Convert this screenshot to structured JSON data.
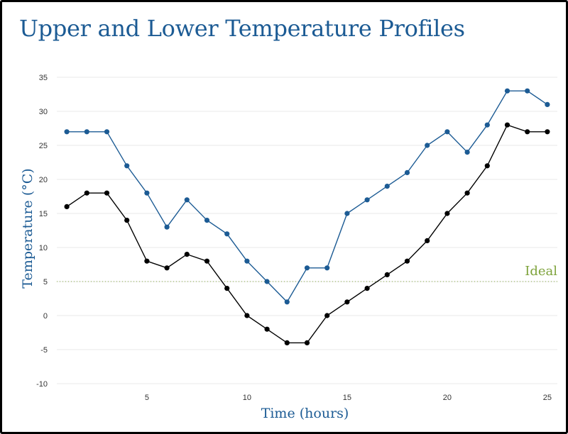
{
  "title": "Upper and Lower Temperature Profiles",
  "colors": {
    "title": "#1c5b94",
    "upper": "#1c5b94",
    "lower": "#000000",
    "ideal": "#7da23a",
    "grid": "#e9e9e9"
  },
  "chart_data": {
    "type": "line",
    "title": "Upper and Lower Temperature Profiles",
    "xlabel": "Time (hours)",
    "ylabel": "Temperature (°C)",
    "xlim": [
      0.5,
      25.5
    ],
    "ylim": [
      -10,
      35
    ],
    "x_ticks": [
      5,
      10,
      15,
      20,
      25
    ],
    "y_ticks": [
      -10,
      -5,
      0,
      5,
      10,
      15,
      20,
      25,
      30,
      35
    ],
    "grid": "horizontal",
    "x": [
      1,
      2,
      3,
      4,
      5,
      6,
      7,
      8,
      9,
      10,
      11,
      12,
      13,
      14,
      15,
      16,
      17,
      18,
      19,
      20,
      21,
      22,
      23,
      24,
      25
    ],
    "series": [
      {
        "key": "upper",
        "color": "#1c5b94",
        "values": [
          27,
          27,
          27,
          22,
          18,
          13,
          17,
          14,
          12,
          8,
          5,
          2,
          7,
          7,
          15,
          17,
          19,
          21,
          25,
          27,
          24,
          28,
          33,
          33,
          31
        ]
      },
      {
        "key": "lower",
        "color": "#000000",
        "values": [
          16,
          18,
          18,
          14,
          8,
          7,
          9,
          8,
          4,
          0,
          -2,
          -4,
          -4,
          0,
          2,
          4,
          6,
          8,
          11,
          15,
          18,
          22,
          28,
          27,
          27
        ]
      }
    ],
    "reference_line": {
      "label": "Ideal",
      "value": 5,
      "style": "dotted",
      "color": "#7da23a"
    }
  }
}
